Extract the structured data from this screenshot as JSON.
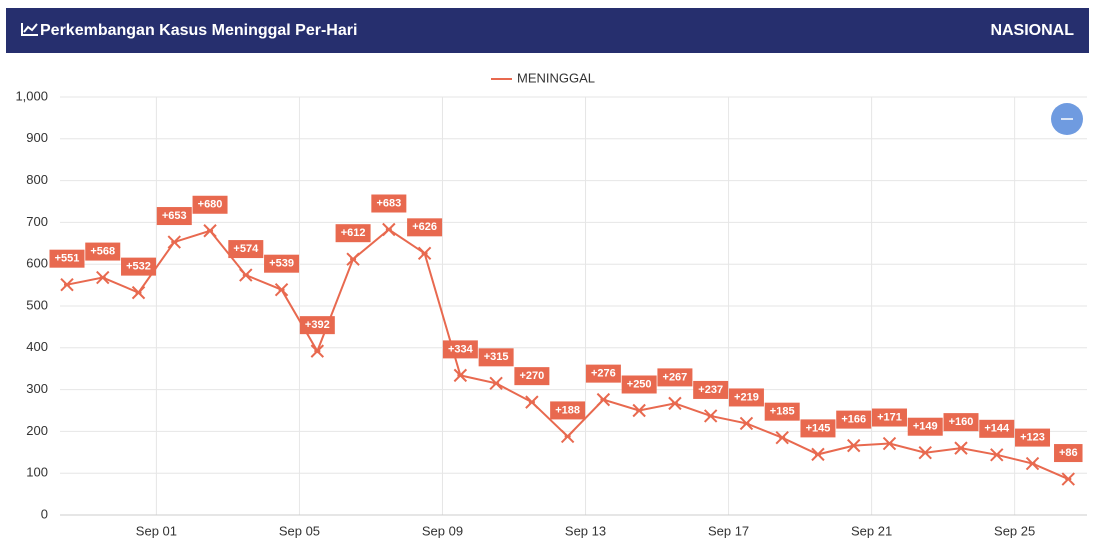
{
  "header": {
    "title": "Perkembangan Kasus Meninggal Per-Hari",
    "scope": "NASIONAL"
  },
  "chart_data": {
    "type": "line",
    "categories": [
      null,
      null,
      null,
      "Sep 01",
      null,
      null,
      null,
      "Sep 05",
      null,
      null,
      null,
      "Sep 09",
      null,
      null,
      null,
      "Sep 13",
      null,
      null,
      null,
      "Sep 17",
      null,
      null,
      null,
      "Sep 21",
      null,
      null,
      null,
      "Sep 25",
      null
    ],
    "series": [
      {
        "name": "MENINGGAL",
        "color": "#e8694f",
        "values": [
          551,
          568,
          532,
          653,
          680,
          574,
          539,
          392,
          612,
          683,
          626,
          334,
          315,
          270,
          188,
          276,
          250,
          267,
          237,
          219,
          185,
          145,
          166,
          171,
          149,
          160,
          144,
          123,
          86
        ],
        "value_labels": [
          "+551",
          "+568",
          "+532",
          "+653",
          "+680",
          "+574",
          "+539",
          "+392",
          "+612",
          "+683",
          "+626",
          "+334",
          "+315",
          "+270",
          "+188",
          "+276",
          "+250",
          "+267",
          "+237",
          "+219",
          "+185",
          "+145",
          "+166",
          "+171",
          "+149",
          "+160",
          "+144",
          "+123",
          "+86"
        ]
      }
    ],
    "ylim": [
      0,
      1000
    ],
    "yticks": [
      0,
      100,
      200,
      300,
      400,
      500,
      600,
      700,
      800,
      900,
      {
        "value": 1000,
        "label": "1,000"
      }
    ],
    "grid": true,
    "legend": "top"
  }
}
